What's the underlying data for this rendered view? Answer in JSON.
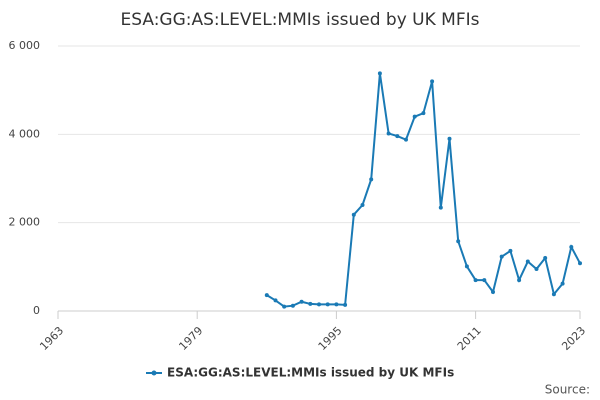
{
  "chart_data": {
    "type": "line",
    "title": "ESA:GG:AS:LEVEL:MMIs issued by UK MFIs",
    "x": [
      1987,
      1988,
      1989,
      1990,
      1991,
      1992,
      1993,
      1994,
      1995,
      1996,
      1997,
      1998,
      1999,
      2000,
      2001,
      2002,
      2003,
      2004,
      2005,
      2006,
      2007,
      2008,
      2009,
      2010,
      2011,
      2012,
      2013,
      2014,
      2015,
      2016,
      2017,
      2018,
      2019,
      2020,
      2021,
      2022,
      2023
    ],
    "series": [
      {
        "name": "ESA:GG:AS:LEVEL:MMIs issued by UK MFIs",
        "color": "#1a7ab5",
        "values": [
          360,
          240,
          100,
          120,
          210,
          160,
          150,
          150,
          150,
          140,
          2180,
          2400,
          2980,
          5380,
          4020,
          3960,
          3880,
          4400,
          4480,
          5200,
          2340,
          3900,
          1580,
          1010,
          700,
          700,
          430,
          1230,
          1360,
          700,
          1120,
          950,
          1200,
          380,
          620,
          1450,
          1080
        ]
      }
    ],
    "xlim": [
      1963,
      2023
    ],
    "xticks": [
      1963,
      1979,
      1995,
      2011,
      2023
    ],
    "ylim": [
      0,
      6000
    ],
    "yticks": [
      0,
      {
        "value": 2000,
        "label": "2 000"
      },
      {
        "value": 4000,
        "label": "4 000"
      },
      {
        "value": 6000,
        "label": "6 000"
      }
    ],
    "grid": true,
    "source": "Source:"
  }
}
